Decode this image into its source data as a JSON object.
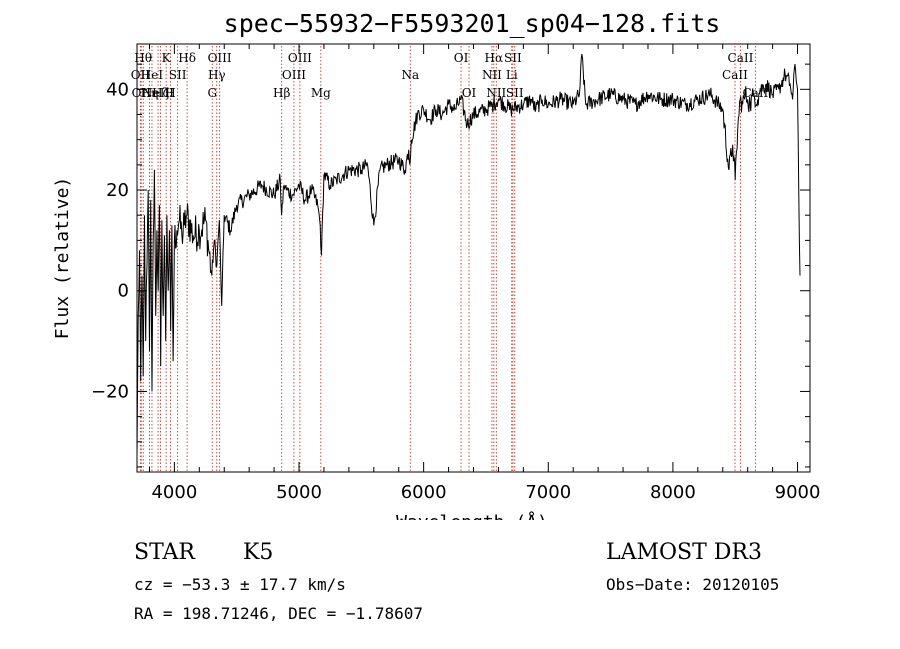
{
  "chart_data": {
    "type": "line",
    "title": "spec−55932−F5593201_sp04−128.fits",
    "xlabel": "Wavelength (Å)",
    "ylabel": "Flux (relative)",
    "xlim": [
      3700,
      9100
    ],
    "ylim": [
      -36,
      49
    ],
    "xticks": [
      4000,
      5000,
      6000,
      7000,
      8000,
      9000
    ],
    "xtick_labels": [
      "4000",
      "5000",
      "6000",
      "7000",
      "8000",
      "9000"
    ],
    "yticks": [
      -20,
      0,
      20,
      40
    ],
    "ytick_labels": [
      "−20",
      "0",
      "20",
      "40"
    ],
    "series": [
      {
        "name": "spectrum",
        "x": [
          3700,
          3710,
          3720,
          3730,
          3740,
          3750,
          3760,
          3770,
          3780,
          3790,
          3800,
          3810,
          3820,
          3830,
          3840,
          3850,
          3860,
          3870,
          3880,
          3890,
          3900,
          3910,
          3920,
          3930,
          3940,
          3950,
          3960,
          3970,
          3980,
          3990,
          4000,
          4020,
          4040,
          4060,
          4080,
          4100,
          4150,
          4200,
          4250,
          4300,
          4320,
          4340,
          4360,
          4380,
          4400,
          4450,
          4500,
          4600,
          4700,
          4800,
          4850,
          4860,
          4880,
          4900,
          4950,
          5000,
          5050,
          5100,
          5150,
          5170,
          5180,
          5200,
          5250,
          5300,
          5400,
          5500,
          5550,
          5600,
          5650,
          5700,
          5800,
          5850,
          5880,
          5890,
          5900,
          5950,
          6000,
          6050,
          6100,
          6150,
          6200,
          6250,
          6300,
          6350,
          6400,
          6500,
          6560,
          6600,
          6700,
          6800,
          6860,
          6900,
          6950,
          7000,
          7100,
          7200,
          7250,
          7270,
          7300,
          7400,
          7500,
          7600,
          7700,
          7800,
          7900,
          8000,
          8100,
          8200,
          8300,
          8400,
          8450,
          8480,
          8500,
          8520,
          8540,
          8560,
          8580,
          8600,
          8620,
          8650,
          8680,
          8700,
          8750,
          8800,
          8850,
          8900,
          8940,
          8960,
          8980,
          9000,
          9010,
          9020
        ],
        "y": [
          -33,
          -5,
          8,
          -18,
          3,
          -17,
          15,
          -10,
          5,
          20,
          -12,
          18,
          -20,
          10,
          24,
          -5,
          12,
          0,
          17,
          -15,
          14,
          -5,
          11,
          -10,
          15,
          0,
          12,
          -8,
          13,
          -14,
          10,
          12,
          14,
          11,
          13,
          15,
          11,
          12,
          14,
          3,
          10,
          5,
          14,
          -3,
          15,
          12,
          17,
          19,
          21,
          19,
          22,
          15,
          21,
          20,
          19,
          21,
          18,
          20,
          17,
          13,
          7,
          23,
          21,
          22,
          24,
          24,
          25,
          13,
          24,
          25,
          26,
          24,
          28,
          25,
          30,
          35,
          36,
          34,
          36,
          35,
          37,
          36,
          38,
          33,
          35,
          36,
          37,
          38,
          36,
          37,
          38,
          36,
          38,
          37,
          38,
          37,
          39,
          47,
          37,
          38,
          39,
          38,
          37,
          39,
          38,
          38,
          37,
          38,
          39,
          36,
          24,
          29,
          22,
          32,
          38,
          37,
          39,
          38,
          37,
          39,
          38,
          40,
          41,
          39,
          40,
          43,
          41,
          38,
          45,
          40,
          19,
          3
        ],
        "color": "#000000"
      }
    ],
    "line_markers": [
      {
        "wl": 3727,
        "label": "OII",
        "row": 2
      },
      {
        "wl": 3734,
        "label": "OII",
        "row": 3
      },
      {
        "wl": 3750,
        "label": "Hθ",
        "row": 1
      },
      {
        "wl": 3800,
        "label": "Hη",
        "row": 3
      },
      {
        "wl": 3820,
        "label": "HeI",
        "row": 2
      },
      {
        "wl": 3869,
        "label": "NeIII",
        "row": 3
      },
      {
        "wl": 3889,
        "label": "Hζ",
        "row": 3
      },
      {
        "wl": 3934,
        "label": "K",
        "row": 1
      },
      {
        "wl": 3969,
        "label": "H",
        "row": 3
      },
      {
        "wl": 4026,
        "label": "SII",
        "row": 2
      },
      {
        "wl": 4102,
        "label": "Hδ",
        "row": 1
      },
      {
        "wl": 4304,
        "label": "G",
        "row": 3
      },
      {
        "wl": 4340,
        "label": "Hγ",
        "row": 2
      },
      {
        "wl": 4363,
        "label": "OIII",
        "row": 1
      },
      {
        "wl": 4861,
        "label": "Hβ",
        "row": 3
      },
      {
        "wl": 4959,
        "label": "OIII",
        "row": 2
      },
      {
        "wl": 5007,
        "label": "OIII",
        "row": 1
      },
      {
        "wl": 5175,
        "label": "Mg",
        "row": 3
      },
      {
        "wl": 5893,
        "label": "Na",
        "row": 2
      },
      {
        "wl": 6300,
        "label": "OI",
        "row": 1
      },
      {
        "wl": 6364,
        "label": "OI",
        "row": 3
      },
      {
        "wl": 6548,
        "label": "NII",
        "row": 2
      },
      {
        "wl": 6563,
        "label": "Hα",
        "row": 1
      },
      {
        "wl": 6583,
        "label": "NII",
        "row": 3
      },
      {
        "wl": 6707,
        "label": "Li",
        "row": 2
      },
      {
        "wl": 6716,
        "label": "SII",
        "row": 1
      },
      {
        "wl": 6731,
        "label": "SII",
        "row": 3
      },
      {
        "wl": 8498,
        "label": "CaII",
        "row": 2
      },
      {
        "wl": 8542,
        "label": "CaII",
        "row": 1
      },
      {
        "wl": 8662,
        "label": "CaII",
        "row": 3
      }
    ]
  },
  "info": {
    "class": "STAR",
    "subclass": "K5",
    "survey": "LAMOST DR3",
    "cz": "cz = −53.3 ± 17.7 km/s",
    "obs_date": "Obs−Date: 20120105",
    "radec": "RA = 198.71246, DEC =  −1.78607"
  }
}
